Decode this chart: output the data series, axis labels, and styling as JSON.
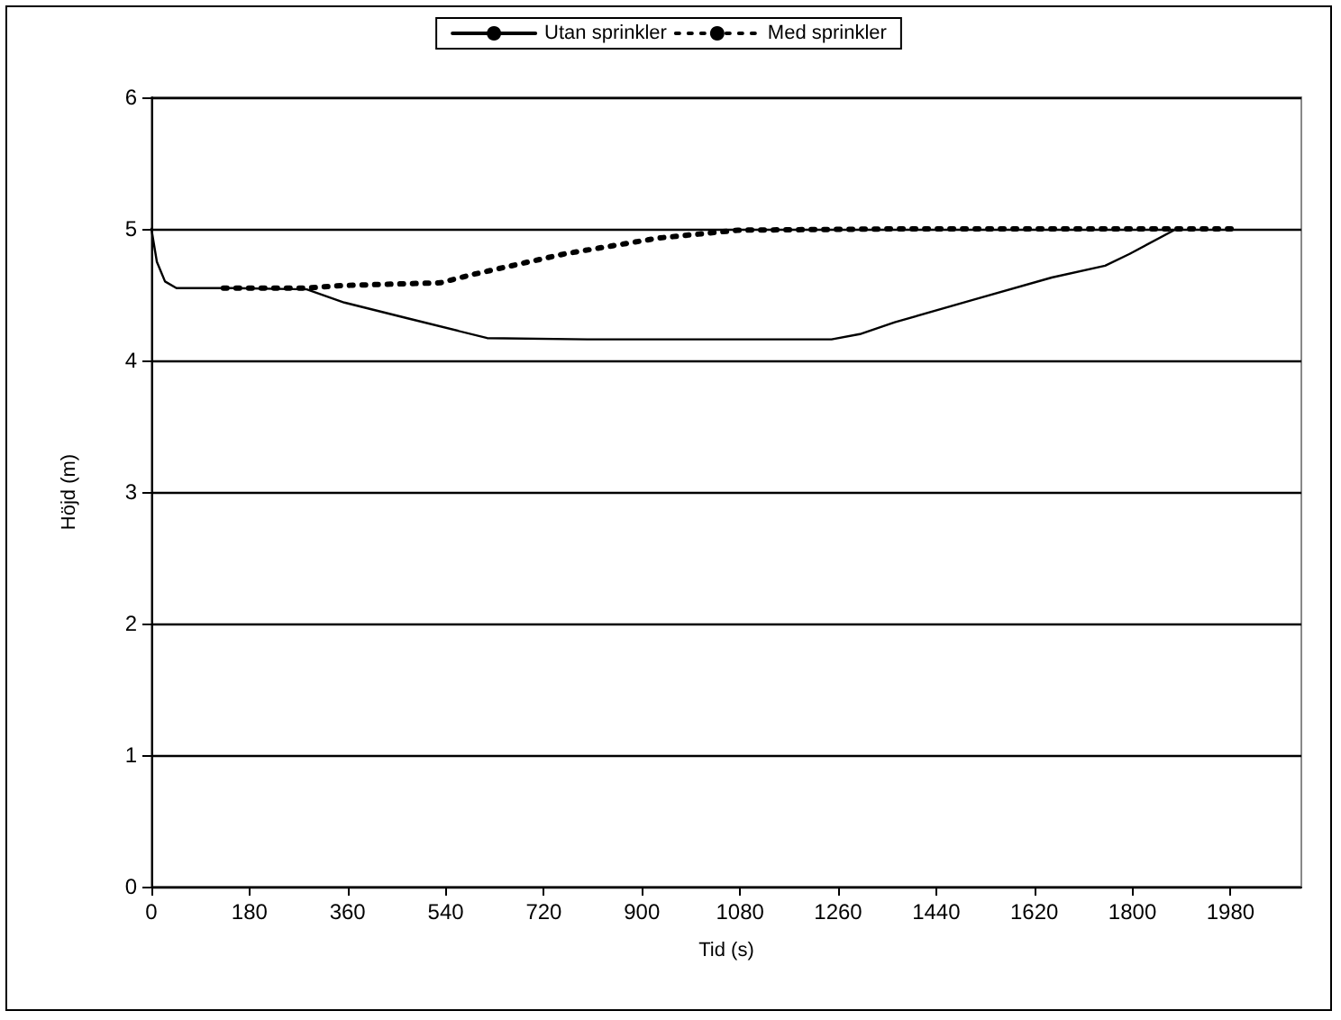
{
  "chart_data": {
    "type": "line",
    "xlabel": "Tid (s)",
    "ylabel": "Höjd (m)",
    "xlim": [
      0,
      2110
    ],
    "xticks": [
      0,
      180,
      360,
      540,
      720,
      900,
      1080,
      1260,
      1440,
      1620,
      1800,
      1980
    ],
    "ylim": [
      0,
      6
    ],
    "yticks": [
      0,
      1,
      2,
      3,
      4,
      5,
      6
    ],
    "grid": "y",
    "legend": "top",
    "marker": "none",
    "series": [
      {
        "name": "Utan sprinkler",
        "color": "#000000",
        "line_style": "solid",
        "x": [
          0,
          10,
          25,
          46,
          150,
          285,
          354,
          470,
          616,
          800,
          1000,
          1248,
          1300,
          1364,
          1507,
          1652,
          1750,
          1795,
          1881
        ],
        "values": [
          5.0,
          4.75,
          4.6,
          4.55,
          4.55,
          4.54,
          4.44,
          4.32,
          4.17,
          4.16,
          4.16,
          4.16,
          4.2,
          4.29,
          4.46,
          4.63,
          4.72,
          4.81,
          5.0
        ]
      },
      {
        "name": "Med sprinkler",
        "color": "#000000",
        "line_style": "dotted",
        "x": [
          132,
          285,
          354,
          530,
          586,
          758,
          930,
          1076,
          1364,
          1997
        ],
        "values": [
          4.55,
          4.55,
          4.57,
          4.59,
          4.65,
          4.81,
          4.93,
          4.99,
          5.0,
          5.0
        ]
      }
    ]
  }
}
